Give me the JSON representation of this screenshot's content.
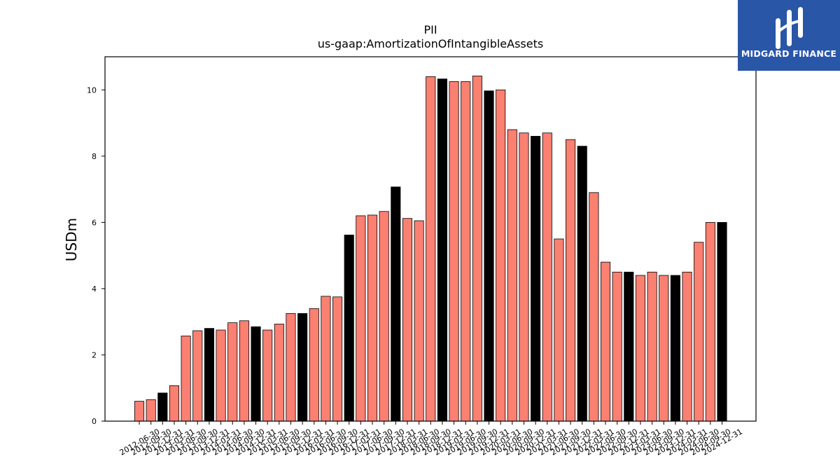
{
  "chart_data": {
    "type": "bar",
    "title": "PII",
    "subtitle": "us-gaap:AmortizationOfIntangibleAssets",
    "ylabel": "USDm",
    "xlabel": "",
    "ylim": [
      0,
      11
    ],
    "yticks": [
      0,
      2,
      4,
      6,
      8,
      10
    ],
    "grid": false,
    "colors": {
      "default": "#fa8072",
      "highlight": "#000000",
      "edge": "#000000"
    },
    "categories": [
      "2012-06-30",
      "2012-09-30",
      "2012-12-31",
      "2013-03-31",
      "2013-06-30",
      "2013-09-30",
      "2013-12-31",
      "2014-03-31",
      "2014-06-30",
      "2014-09-30",
      "2014-12-31",
      "2015-03-31",
      "2015-06-30",
      "2015-09-30",
      "2015-12-31",
      "2016-03-31",
      "2016-06-30",
      "2016-09-30",
      "2016-12-31",
      "2017-03-31",
      "2017-06-30",
      "2017-09-30",
      "2017-12-31",
      "2018-03-31",
      "2018-06-30",
      "2018-09-30",
      "2018-12-31",
      "2019-03-31",
      "2019-06-30",
      "2019-09-30",
      "2019-12-31",
      "2020-03-31",
      "2020-06-30",
      "2020-09-30",
      "2020-12-31",
      "2021-03-31",
      "2021-06-30",
      "2021-09-30",
      "2021-12-31",
      "2022-03-31",
      "2022-06-30",
      "2022-09-30",
      "2022-12-31",
      "2023-03-31",
      "2023-06-30",
      "2023-09-30",
      "2023-12-31",
      "2024-03-31",
      "2024-06-30",
      "2024-09-30",
      "2024-12-31"
    ],
    "values": [
      0.6,
      0.65,
      0.85,
      1.07,
      2.57,
      2.73,
      2.8,
      2.75,
      2.97,
      3.03,
      2.85,
      2.75,
      2.93,
      3.25,
      3.25,
      3.4,
      3.77,
      3.75,
      5.62,
      6.2,
      6.22,
      6.33,
      7.07,
      6.12,
      6.05,
      10.4,
      10.33,
      10.25,
      10.25,
      10.42,
      9.97,
      10.0,
      8.8,
      8.7,
      8.6,
      8.7,
      5.5,
      8.5,
      8.3,
      6.9,
      4.8,
      4.5,
      4.5,
      4.4,
      4.5,
      4.4,
      4.4,
      4.5,
      5.4,
      6.0,
      6.0
    ],
    "highlight": [
      false,
      false,
      true,
      false,
      false,
      false,
      true,
      false,
      false,
      false,
      true,
      false,
      false,
      false,
      true,
      false,
      false,
      false,
      true,
      false,
      false,
      false,
      true,
      false,
      false,
      false,
      true,
      false,
      false,
      false,
      true,
      false,
      false,
      false,
      true,
      false,
      false,
      false,
      true,
      false,
      false,
      false,
      true,
      false,
      false,
      false,
      true,
      false,
      false,
      false,
      true
    ]
  },
  "logo": {
    "text": "MIDGARD FINANCE",
    "background": "#2a56a8"
  }
}
